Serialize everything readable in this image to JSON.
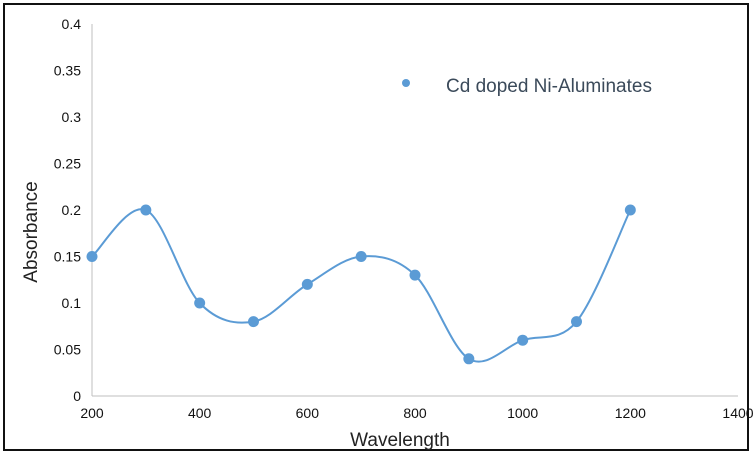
{
  "chart_data": {
    "type": "line",
    "title": "",
    "xlabel": "Wavelength",
    "ylabel": "Absorbance",
    "xlim": [
      200,
      1400
    ],
    "ylim": [
      0,
      0.4
    ],
    "x_ticks": [
      "200",
      "400",
      "600",
      "800",
      "1000",
      "1200",
      "1400"
    ],
    "y_ticks": [
      "0",
      "0.05",
      "0.1",
      "0.15",
      "0.2",
      "0.25",
      "0.3",
      "0.35",
      "0.4"
    ],
    "grid": false,
    "smooth": true,
    "legend": {
      "position": "top-right",
      "entries": [
        "Cd doped Ni-Aluminates"
      ]
    },
    "series": [
      {
        "name": "Cd doped Ni-Aluminates",
        "color": "#5b9bd5",
        "x": [
          200,
          300,
          400,
          500,
          600,
          700,
          800,
          900,
          1000,
          1100,
          1200
        ],
        "y": [
          0.15,
          0.2,
          0.1,
          0.08,
          0.12,
          0.15,
          0.13,
          0.04,
          0.06,
          0.08,
          0.2
        ]
      }
    ]
  }
}
